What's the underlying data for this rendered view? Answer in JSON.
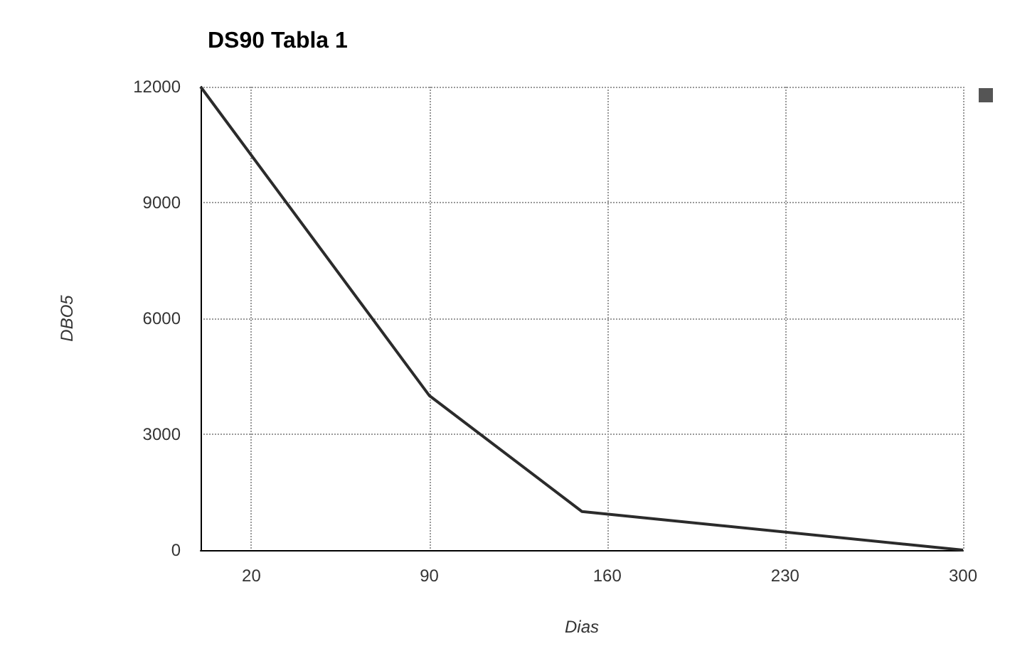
{
  "chart_data": {
    "type": "line",
    "title": "DS90 Tabla 1",
    "xlabel": "Dias",
    "ylabel": "DBO5",
    "x": [
      0,
      90,
      150,
      300
    ],
    "series": [
      {
        "color": "#2b2b2b",
        "values": [
          12000,
          4000,
          1000,
          0
        ]
      }
    ],
    "xlim": [
      0,
      300
    ],
    "xticks": [
      20,
      90,
      160,
      230,
      300
    ],
    "ylim": [
      0,
      12000
    ],
    "yticks": [
      0,
      3000,
      6000,
      9000,
      12000
    ],
    "grid": true,
    "marker": "none",
    "line_style": "solid"
  }
}
